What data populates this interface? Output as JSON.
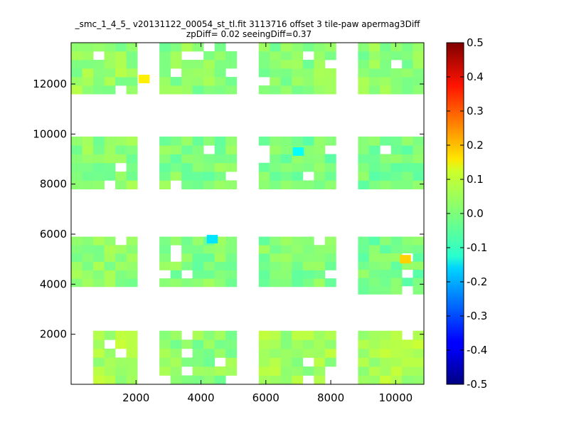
{
  "chart_data": {
    "type": "heatmap",
    "title_line1": "_smc_1_4_5_ v20131122_00054_st_tl.fit 3113716 offset 3 tile-paw apermag3Diff",
    "title_line2": "zpDiff= 0.02 seeingDiff=0.37",
    "xlabel": "",
    "ylabel": "",
    "xlim": [
      0,
      10870
    ],
    "ylim": [
      0,
      13650
    ],
    "xticks": [
      2000,
      4000,
      6000,
      8000,
      10000
    ],
    "yticks": [
      2000,
      4000,
      6000,
      8000,
      10000,
      12000
    ],
    "colorbar": {
      "colormap": "jet",
      "vmin": -0.5,
      "vmax": 0.5,
      "ticks": [
        "0.5",
        "0.4",
        "0.3",
        "0.2",
        "0.1",
        "0.0",
        "-0.1",
        "-0.2",
        "-0.3",
        "-0.4",
        "-0.5"
      ]
    },
    "cell_size": 340,
    "notable_cells": [
      {
        "x": 2250,
        "y": 12200,
        "value": 0.14
      },
      {
        "x": 7000,
        "y": 9300,
        "value": -0.12
      },
      {
        "x": 4350,
        "y": 5800,
        "value": -0.15
      },
      {
        "x": 10300,
        "y": 5000,
        "value": 0.17
      }
    ],
    "regions": [
      {
        "x0": 680,
        "x1": 2040,
        "y0": 0,
        "y1": 2140,
        "value": 0.04
      },
      {
        "x0": 2720,
        "x1": 5100,
        "y0": 0,
        "y1": 2140,
        "value": 0.01
      },
      {
        "x0": 5780,
        "x1": 8160,
        "y0": 0,
        "y1": 2140,
        "value": 0.03
      },
      {
        "x0": 8840,
        "x1": 10870,
        "y0": 0,
        "y1": 2140,
        "value": 0.04
      },
      {
        "x0": 0,
        "x1": 2040,
        "y0": 3900,
        "y1": 5900,
        "value": 0.01
      },
      {
        "x0": 2720,
        "x1": 5100,
        "y0": 3900,
        "y1": 5900,
        "value": 0.0
      },
      {
        "x0": 5780,
        "x1": 8160,
        "y0": 3900,
        "y1": 5900,
        "value": 0.0
      },
      {
        "x0": 8840,
        "x1": 10870,
        "y0": 3600,
        "y1": 5900,
        "value": -0.01
      },
      {
        "x0": 0,
        "x1": 2040,
        "y0": 7800,
        "y1": 9900,
        "value": 0.01
      },
      {
        "x0": 2720,
        "x1": 5100,
        "y0": 7800,
        "y1": 9900,
        "value": 0.0
      },
      {
        "x0": 5780,
        "x1": 8160,
        "y0": 7800,
        "y1": 9900,
        "value": -0.01
      },
      {
        "x0": 8840,
        "x1": 10870,
        "y0": 7800,
        "y1": 9900,
        "value": -0.01
      },
      {
        "x0": 0,
        "x1": 2040,
        "y0": 11600,
        "y1": 13650,
        "value": 0.02
      },
      {
        "x0": 2720,
        "x1": 5100,
        "y0": 11600,
        "y1": 13650,
        "value": 0.01
      },
      {
        "x0": 5780,
        "x1": 8160,
        "y0": 11600,
        "y1": 13650,
        "value": 0.01
      },
      {
        "x0": 8840,
        "x1": 10870,
        "y0": 11600,
        "y1": 13650,
        "value": 0.01
      }
    ]
  }
}
